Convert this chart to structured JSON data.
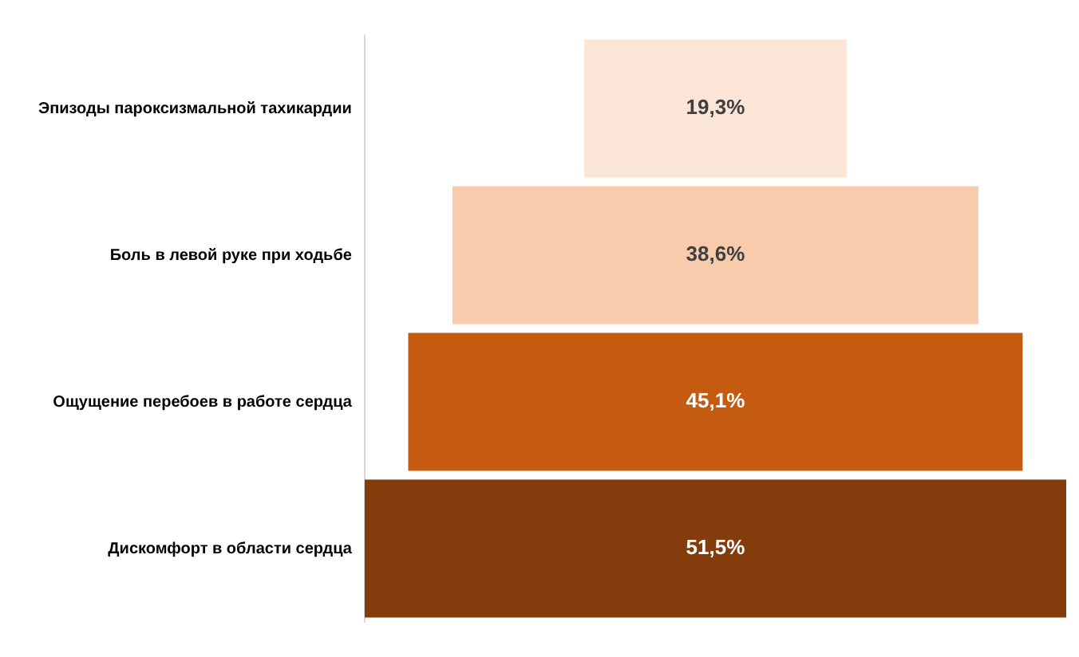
{
  "chart_data": {
    "type": "other",
    "categories": [
      "Эпизоды пароксизмальной тахикардии",
      "Боль в левой руке при ходьбе",
      "Ощущение перебоев в работе сердца",
      "Дискомфорт в области сердца"
    ],
    "values": [
      19.3,
      38.6,
      45.1,
      51.5
    ],
    "value_labels": [
      "19,3%",
      "38,6%",
      "45,1%",
      "51,5%"
    ],
    "colors": [
      "#fbe5d6",
      "#f8cbad",
      "#c55a11",
      "#843c0c"
    ]
  }
}
